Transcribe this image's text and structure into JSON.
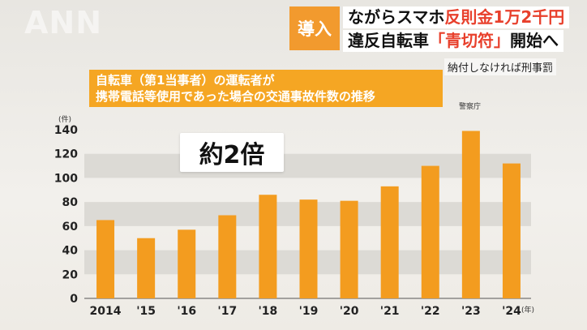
{
  "headline": {
    "tag": "導入",
    "line1_prefix": "ながらスマホ",
    "line1_accent": "反則金1万2千円",
    "line2_prefix": "違反自転車",
    "line2_accent": "「青切符」",
    "line2_suffix": "開始へ",
    "note": "納付しなければ刑事罰"
  },
  "logo": "ANN",
  "callout": "約2倍",
  "colors": {
    "bar": "#f39c1f",
    "accent": "#e8402c",
    "title_bg": "#f5a623",
    "band": "#dcdad5"
  },
  "chart_data": {
    "type": "bar",
    "title": "自転車（第1当事者）の運転者が 携帯電話等使用であった場合の交通事故件数の推移",
    "title_lines": [
      "自転車（第1当事者）の運転者が",
      "携帯電話等使用であった場合の交通事故件数の推移"
    ],
    "source": "警察庁",
    "y_unit": "(件)",
    "x_unit": "(年)",
    "categories": [
      "2014",
      "'15",
      "'16",
      "'17",
      "'18",
      "'19",
      "'20",
      "'21",
      "'22",
      "'23",
      "'24"
    ],
    "values": [
      65,
      50,
      57,
      69,
      86,
      82,
      81,
      93,
      110,
      139,
      112
    ],
    "ylim": [
      0,
      140
    ],
    "yticks": [
      0,
      20,
      40,
      60,
      80,
      100,
      120,
      140
    ],
    "grid": "alternating bands"
  }
}
